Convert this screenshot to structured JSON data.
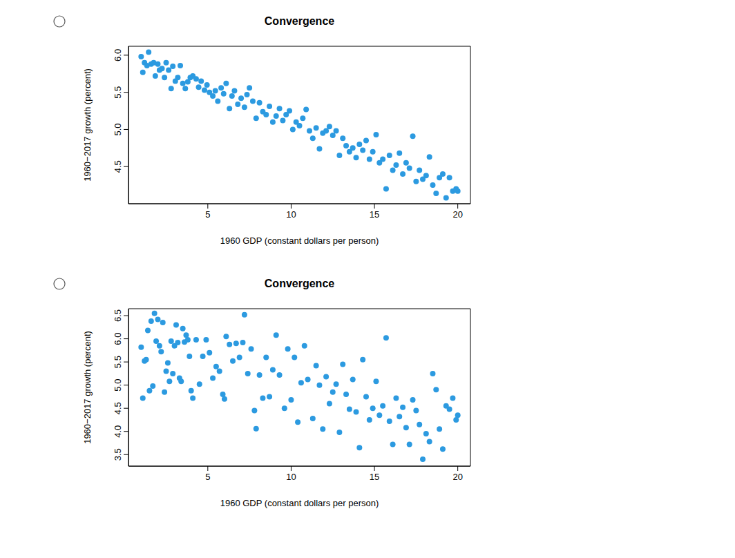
{
  "chart_data": [
    {
      "type": "scatter",
      "title": "Convergence",
      "x_label": "1960 GDP (constant dollars per person)",
      "y_label": "1960−2017 growth (percent)",
      "color": "#2c9ae0",
      "marker": "circle",
      "xlim": [
        0.24,
        20.76
      ],
      "xticks": [
        5,
        10,
        15,
        20
      ],
      "ylim": [
        4.0,
        6.12
      ],
      "yticks": [
        4.5,
        {
          "value": 5,
          "label": "5.0"
        },
        5.5,
        {
          "value": 6,
          "label": "6.0"
        }
      ],
      "x": [
        1.0,
        1.1,
        1.2,
        1.35,
        1.45,
        1.6,
        1.75,
        1.85,
        2.0,
        2.1,
        2.25,
        2.4,
        2.5,
        2.65,
        2.8,
        2.9,
        3.05,
        3.2,
        3.35,
        3.5,
        3.65,
        3.8,
        3.95,
        4.1,
        4.3,
        4.45,
        4.6,
        4.8,
        4.95,
        5.1,
        5.3,
        5.45,
        5.6,
        5.8,
        5.95,
        6.1,
        6.3,
        6.45,
        6.6,
        6.8,
        7.0,
        7.2,
        7.35,
        7.5,
        7.7,
        7.9,
        8.1,
        8.3,
        8.5,
        8.7,
        8.9,
        9.1,
        9.3,
        9.5,
        9.7,
        9.9,
        10.1,
        10.3,
        10.5,
        10.7,
        10.9,
        11.1,
        11.3,
        11.5,
        11.7,
        11.9,
        12.1,
        12.3,
        12.5,
        12.7,
        12.9,
        13.1,
        13.3,
        13.5,
        13.7,
        13.9,
        14.1,
        14.3,
        14.5,
        14.7,
        14.9,
        15.1,
        15.3,
        15.5,
        15.7,
        15.9,
        16.1,
        16.3,
        16.5,
        16.7,
        16.9,
        17.1,
        17.3,
        17.5,
        17.7,
        17.9,
        18.1,
        18.3,
        18.5,
        18.7,
        18.9,
        19.1,
        19.3,
        19.5,
        19.7,
        19.9,
        20.0
      ],
      "values": [
        5.98,
        5.77,
        5.9,
        5.86,
        6.04,
        5.88,
        5.9,
        5.72,
        5.88,
        5.8,
        5.82,
        5.7,
        5.9,
        5.8,
        5.55,
        5.85,
        5.65,
        5.7,
        5.86,
        5.62,
        5.55,
        5.64,
        5.7,
        5.72,
        5.68,
        5.57,
        5.65,
        5.53,
        5.6,
        5.5,
        5.45,
        5.52,
        5.38,
        5.56,
        5.48,
        5.62,
        5.28,
        5.45,
        5.52,
        5.34,
        5.42,
        5.3,
        5.47,
        5.56,
        5.38,
        5.15,
        5.36,
        5.24,
        5.2,
        5.31,
        5.1,
        5.18,
        5.28,
        5.12,
        5.2,
        5.25,
        5.0,
        5.1,
        5.05,
        5.15,
        5.27,
        4.98,
        4.88,
        5.02,
        4.74,
        4.95,
        4.98,
        5.04,
        4.92,
        4.98,
        4.65,
        4.88,
        4.78,
        4.7,
        4.75,
        4.62,
        4.8,
        4.72,
        4.85,
        4.6,
        4.7,
        4.93,
        4.55,
        4.6,
        4.2,
        4.65,
        4.45,
        4.52,
        4.68,
        4.4,
        4.55,
        4.48,
        4.91,
        4.3,
        4.45,
        4.33,
        4.38,
        4.63,
        4.25,
        4.14,
        4.35,
        4.4,
        4.08,
        4.35,
        4.17,
        4.2,
        4.17
      ]
    },
    {
      "type": "scatter",
      "title": "Convergence",
      "x_label": "1960 GDP (constant dollars per person)",
      "y_label": "1960−2017 growth (percent)",
      "color": "#2c9ae0",
      "marker": "circle",
      "xlim": [
        0.24,
        20.76
      ],
      "xticks": [
        5,
        10,
        15,
        20
      ],
      "ylim": [
        3.25,
        6.65
      ],
      "yticks": [
        3.5,
        {
          "value": 4,
          "label": "4.0"
        },
        4.5,
        {
          "value": 5,
          "label": "5.0"
        },
        5.5,
        {
          "value": 6,
          "label": "6.0"
        },
        6.5
      ],
      "x": [
        1.0,
        1.1,
        1.2,
        1.3,
        1.4,
        1.5,
        1.6,
        1.7,
        1.8,
        1.9,
        2.0,
        2.1,
        2.2,
        2.3,
        2.4,
        2.5,
        2.6,
        2.7,
        2.8,
        2.9,
        3.0,
        3.1,
        3.2,
        3.3,
        3.4,
        3.5,
        3.6,
        3.7,
        3.8,
        3.9,
        4.0,
        4.1,
        4.3,
        4.5,
        4.7,
        4.9,
        5.1,
        5.3,
        5.5,
        5.7,
        5.9,
        6.0,
        6.1,
        6.3,
        6.5,
        6.7,
        6.9,
        7.1,
        7.2,
        7.4,
        7.6,
        7.8,
        7.9,
        8.1,
        8.3,
        8.5,
        8.7,
        8.9,
        9.1,
        9.3,
        9.6,
        9.8,
        10.0,
        10.2,
        10.4,
        10.6,
        10.8,
        11.0,
        11.3,
        11.5,
        11.7,
        11.9,
        12.1,
        12.3,
        12.5,
        12.7,
        12.9,
        13.1,
        13.3,
        13.5,
        13.7,
        13.9,
        14.1,
        14.3,
        14.5,
        14.7,
        14.9,
        15.1,
        15.3,
        15.5,
        15.7,
        15.9,
        16.1,
        16.3,
        16.5,
        16.7,
        16.9,
        17.1,
        17.3,
        17.5,
        17.7,
        17.9,
        18.1,
        18.3,
        18.5,
        18.7,
        18.9,
        19.1,
        19.3,
        19.5,
        19.7,
        19.9,
        20.0
      ],
      "values": [
        5.82,
        4.72,
        5.52,
        5.55,
        6.18,
        4.88,
        6.38,
        4.98,
        6.55,
        5.95,
        6.42,
        5.85,
        5.72,
        6.35,
        4.85,
        5.3,
        5.48,
        5.08,
        5.95,
        5.25,
        5.85,
        6.3,
        5.92,
        5.15,
        5.08,
        6.22,
        5.93,
        6.08,
        5.98,
        5.62,
        4.88,
        4.72,
        5.98,
        5.02,
        5.62,
        5.98,
        5.7,
        5.15,
        5.4,
        5.3,
        4.8,
        4.7,
        6.05,
        5.88,
        5.52,
        5.9,
        5.6,
        5.92,
        6.52,
        5.25,
        5.78,
        4.45,
        4.06,
        5.22,
        4.72,
        5.6,
        4.75,
        5.33,
        6.08,
        5.22,
        4.5,
        5.78,
        4.68,
        5.6,
        4.2,
        5.05,
        5.85,
        5.12,
        4.28,
        5.42,
        5.0,
        4.05,
        5.18,
        4.6,
        4.85,
        5.02,
        3.98,
        5.45,
        4.8,
        4.48,
        5.12,
        4.42,
        3.65,
        5.55,
        4.75,
        4.25,
        4.5,
        5.08,
        4.35,
        4.55,
        6.02,
        4.22,
        3.72,
        4.72,
        4.32,
        4.52,
        4.08,
        3.72,
        4.68,
        4.45,
        4.15,
        3.4,
        3.95,
        3.78,
        5.25,
        4.9,
        4.05,
        3.62,
        4.55,
        4.48,
        4.72,
        4.25,
        4.35
      ]
    }
  ]
}
